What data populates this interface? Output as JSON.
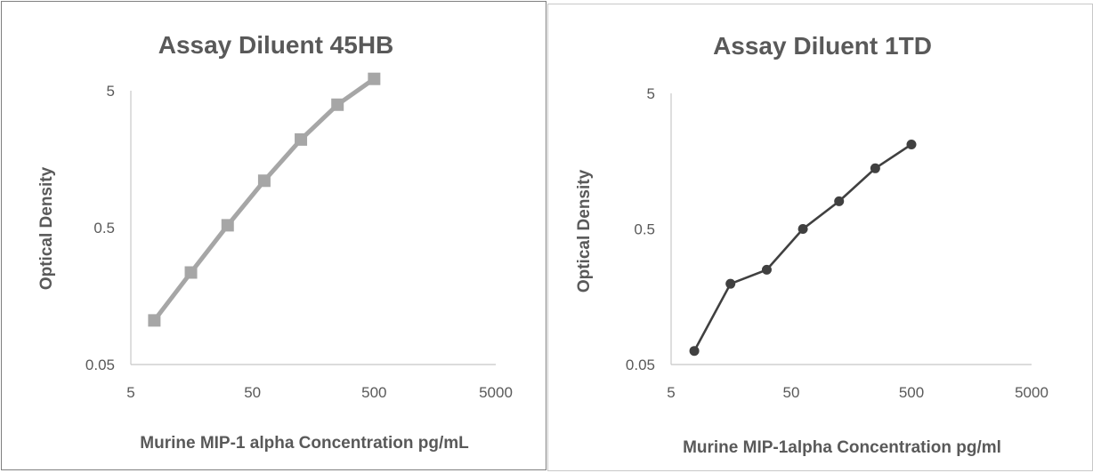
{
  "chart_data": [
    {
      "type": "line",
      "title": "Assay Diluent 45HB",
      "xlabel": "Murine MIP-1 alpha  Concentration pg/mL",
      "ylabel": "Optical Density",
      "x_scale": "log",
      "y_scale": "log",
      "xlim": [
        5,
        5000
      ],
      "ylim": [
        0.05,
        5
      ],
      "x_ticks": [
        "5",
        "50",
        "500",
        "5000"
      ],
      "y_ticks": [
        "0.05",
        "0.5",
        "5"
      ],
      "grid": false,
      "marker": "square",
      "series_color": "#a6a6a6",
      "series": [
        {
          "x": [
            7.8,
            15.6,
            31.25,
            62.5,
            125,
            250,
            500
          ],
          "y": [
            0.105,
            0.235,
            0.52,
            1.1,
            2.2,
            3.95,
            6.1
          ]
        }
      ]
    },
    {
      "type": "line",
      "title": "Assay Diluent 1TD",
      "xlabel": "Murine MIP-1alpha  Concentration pg/ml",
      "ylabel": "Optical Density",
      "x_scale": "log",
      "y_scale": "log",
      "xlim": [
        5,
        5000
      ],
      "ylim": [
        0.05,
        5
      ],
      "x_ticks": [
        "5",
        "50",
        "500",
        "5000"
      ],
      "y_ticks": [
        "0.05",
        "0.5",
        "5"
      ],
      "grid": false,
      "marker": "circle",
      "series_color": "#404040",
      "series": [
        {
          "x": [
            7.8,
            15.6,
            31.25,
            62.5,
            125,
            250,
            500
          ],
          "y": [
            0.063,
            0.197,
            0.25,
            0.5,
            0.8,
            1.4,
            2.1
          ]
        }
      ]
    }
  ]
}
